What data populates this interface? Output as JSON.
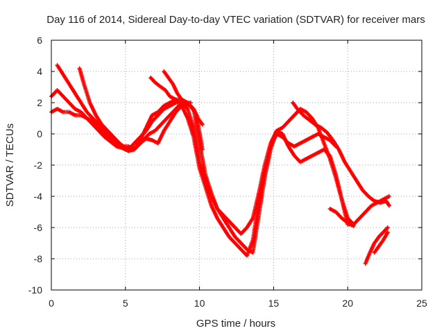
{
  "chart_data": {
    "type": "scatter",
    "title": "Day 116 of 2014, Sidereal Day-to-day VTEC variation (SDTVAR) for receiver mars",
    "xlabel": "GPS time / hours",
    "ylabel": "SDTVAR / TECUs",
    "xlim": [
      0,
      25
    ],
    "ylim": [
      -10,
      6
    ],
    "xticks": [
      0,
      5,
      10,
      15,
      20,
      25
    ],
    "yticks": [
      -10,
      -8,
      -6,
      -4,
      -2,
      0,
      2,
      4,
      6
    ],
    "grid": true,
    "marker": "+",
    "color": "#ff0000",
    "series": [
      {
        "x": [
          0.0,
          0.4,
          0.8,
          1.2,
          1.6,
          2.0,
          2.4,
          2.8,
          3.2,
          3.6,
          4.0,
          4.4,
          4.8,
          5.2,
          5.6,
          6.0,
          6.4,
          6.8,
          7.2,
          7.6,
          8.0,
          8.4,
          8.8,
          9.2,
          9.6,
          10.0,
          10.4,
          10.8,
          11.2,
          11.6,
          12.0,
          12.4,
          12.8,
          13.2,
          13.6,
          14.0,
          14.4,
          14.8,
          15.2,
          15.6,
          16.0,
          16.4,
          16.8,
          17.2,
          17.6,
          18.0,
          18.4,
          18.8,
          19.2,
          19.6,
          20.0,
          20.4,
          20.8,
          21.2,
          21.6,
          22.0,
          22.4,
          22.8
        ],
        "y": [
          2.4,
          2.8,
          2.4,
          2.0,
          1.6,
          1.4,
          1.0,
          0.6,
          0.2,
          -0.2,
          -0.5,
          -0.8,
          -0.9,
          -1.0,
          -0.6,
          -0.2,
          0.2,
          0.8,
          1.2,
          1.6,
          1.8,
          2.0,
          2.0,
          1.6,
          0.4,
          -1.8,
          -3.0,
          -4.0,
          -4.8,
          -5.2,
          -5.6,
          -6.0,
          -6.4,
          -6.0,
          -5.4,
          -3.8,
          -2.0,
          -0.6,
          0.2,
          0.0,
          -0.8,
          -1.4,
          -1.8,
          -1.6,
          -1.4,
          -1.2,
          -1.0,
          -1.4,
          -2.6,
          -4.2,
          -5.8,
          -5.8,
          -5.4,
          -5.0,
          -4.6,
          -4.4,
          -4.2,
          -4.0
        ]
      },
      {
        "x": [
          0.0,
          0.4,
          0.8,
          1.2,
          1.6,
          2.0,
          2.4,
          2.8,
          3.2,
          3.6,
          4.0,
          4.4,
          4.8,
          5.2,
          5.6,
          6.0,
          6.4,
          6.8,
          7.2,
          7.6,
          8.0,
          8.4,
          8.8,
          9.2,
          9.6,
          10.0,
          10.4,
          10.8,
          11.2,
          11.6,
          12.0,
          12.4,
          12.8,
          13.2,
          13.6,
          14.0,
          14.4,
          14.8,
          15.2,
          15.6,
          16.0,
          16.4,
          16.8,
          17.2,
          17.6,
          18.0,
          18.4,
          18.8,
          19.2
        ],
        "y": [
          1.4,
          1.6,
          1.4,
          1.4,
          1.2,
          1.2,
          1.0,
          0.8,
          0.4,
          0.0,
          -0.4,
          -0.6,
          -0.8,
          -0.8,
          -1.0,
          -0.6,
          -0.3,
          -0.4,
          -0.6,
          0.2,
          0.8,
          1.4,
          1.8,
          1.0,
          -0.2,
          -2.2,
          -3.4,
          -4.6,
          -5.4,
          -6.0,
          -6.6,
          -7.0,
          -7.4,
          -7.8,
          -6.8,
          -4.4,
          -2.4,
          -0.8,
          0.0,
          -0.2,
          -0.6,
          -0.8,
          -0.6,
          -0.4,
          -0.2,
          0.0,
          -0.2,
          -0.4,
          -0.8
        ]
      },
      {
        "x": [
          0.4,
          0.8,
          1.2,
          1.6,
          2.0,
          2.4,
          2.8,
          3.2,
          3.6,
          4.0,
          4.4,
          4.8,
          5.2,
          5.6,
          6.0,
          6.4,
          6.8,
          7.2,
          7.6,
          8.0,
          8.4,
          8.8,
          9.2,
          9.6,
          10.0,
          10.4,
          10.8,
          11.2,
          11.6,
          12.0,
          12.4,
          12.8,
          13.2,
          13.6,
          14.0,
          14.4,
          14.8,
          15.2,
          15.6,
          16.0,
          16.4,
          16.8,
          17.2,
          17.6,
          18.0,
          18.4,
          18.8,
          19.2,
          19.6,
          20.0,
          20.4
        ],
        "y": [
          4.4,
          3.8,
          3.2,
          2.6,
          2.0,
          1.4,
          1.0,
          0.6,
          0.2,
          -0.2,
          -0.6,
          -0.9,
          -1.1,
          -1.0,
          -0.4,
          0.4,
          1.2,
          1.4,
          1.8,
          2.0,
          2.2,
          2.2,
          2.0,
          1.6,
          -0.6,
          -2.6,
          -3.8,
          -4.8,
          -5.4,
          -6.0,
          -6.6,
          -7.0,
          -7.4,
          -7.6,
          -5.2,
          -2.8,
          -1.0,
          0.2,
          0.4,
          0.8,
          1.2,
          1.6,
          1.4,
          1.0,
          0.4,
          -0.6,
          -1.6,
          -2.8,
          -4.2,
          -5.4,
          -5.8
        ]
      },
      {
        "x": [
          1.9,
          2.2,
          2.6,
          3.0,
          3.4,
          3.8,
          4.2,
          4.6,
          5.0,
          5.4,
          5.8,
          6.2,
          6.6,
          7.0,
          7.4,
          7.8,
          8.2,
          8.6,
          9.0,
          9.4,
          9.8,
          10.2
        ],
        "y": [
          4.2,
          3.2,
          2.0,
          1.2,
          0.6,
          0.2,
          -0.2,
          -0.6,
          -0.9,
          -1.0,
          -0.8,
          -0.4,
          0.0,
          0.2,
          0.6,
          1.0,
          1.4,
          1.8,
          2.0,
          1.8,
          1.2,
          -1.0
        ]
      },
      {
        "x": [
          6.7,
          7.0,
          7.4,
          7.7,
          8.0,
          8.4,
          8.8,
          9.2,
          9.6,
          9.9,
          10.2
        ],
        "y": [
          3.6,
          3.3,
          3.0,
          2.8,
          2.4,
          2.2,
          1.9,
          1.9,
          1.6,
          1.0,
          0.6
        ]
      },
      {
        "x": [
          7.6,
          7.9,
          8.2,
          8.5,
          8.8,
          9.1,
          9.4
        ],
        "y": [
          4.0,
          3.6,
          3.2,
          2.6,
          2.2,
          2.0,
          2.0
        ]
      },
      {
        "x": [
          16.3,
          16.6,
          17.0,
          17.4,
          17.8,
          18.2,
          18.6,
          19.0,
          19.4,
          19.8,
          20.2,
          20.6,
          21.0,
          21.4,
          21.8,
          22.2,
          22.6,
          22.8
        ],
        "y": [
          2.0,
          1.6,
          1.2,
          0.9,
          0.6,
          0.4,
          0.1,
          -0.4,
          -1.0,
          -1.8,
          -2.4,
          -3.0,
          -3.6,
          -4.0,
          -4.3,
          -4.4,
          -4.3,
          -4.6
        ]
      },
      {
        "x": [
          18.8,
          19.2,
          19.6,
          20.0,
          20.4
        ],
        "y": [
          -4.8,
          -5.0,
          -5.4,
          -5.7,
          -5.9
        ]
      },
      {
        "x": [
          21.2,
          21.5,
          21.8,
          22.1,
          22.4,
          22.7
        ],
        "y": [
          -8.3,
          -7.6,
          -7.0,
          -6.6,
          -6.3,
          -6.0
        ]
      },
      {
        "x": [
          21.8,
          22.1,
          22.4,
          22.7
        ],
        "y": [
          -7.6,
          -7.2,
          -6.8,
          -6.3
        ]
      }
    ]
  }
}
